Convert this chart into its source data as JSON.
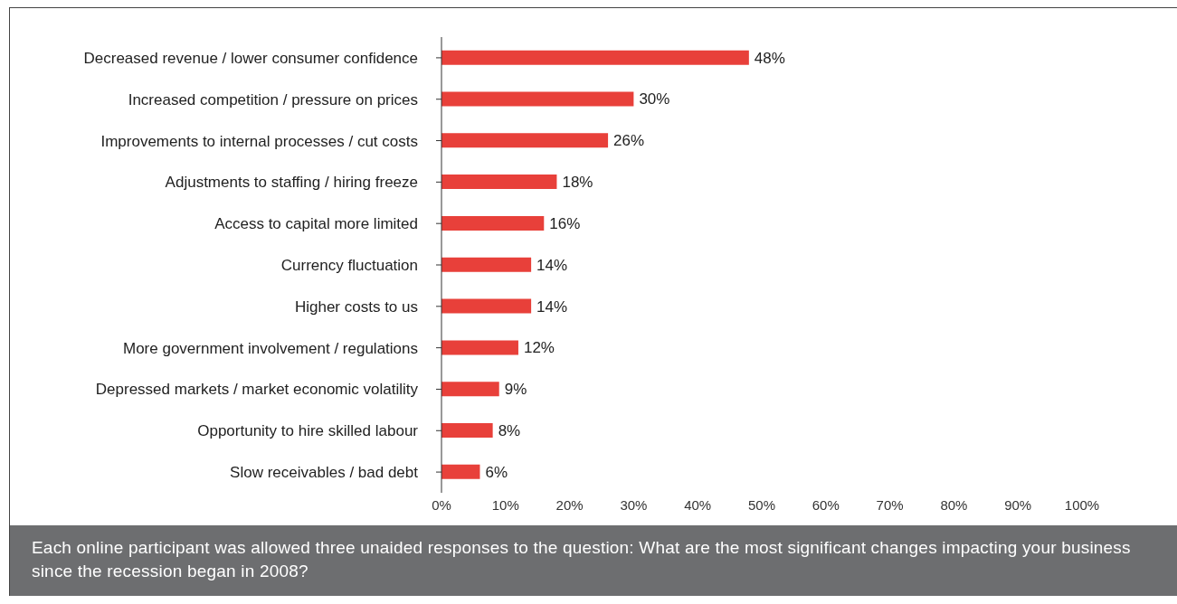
{
  "chart_data": {
    "type": "bar",
    "orientation": "horizontal",
    "categories": [
      "Decreased revenue / lower consumer confidence",
      "Increased competition / pressure on prices",
      "Improvements to internal processes / cut costs",
      "Adjustments to staffing / hiring freeze",
      "Access to capital more limited",
      "Currency fluctuation",
      "Higher costs to us",
      "More government involvement / regulations",
      "Depressed markets / market economic volatility",
      "Opportunity to hire skilled labour",
      "Slow receivables / bad debt"
    ],
    "values": [
      48,
      30,
      26,
      18,
      16,
      14,
      14,
      12,
      9,
      8,
      6
    ],
    "value_labels": [
      "48%",
      "30%",
      "26%",
      "18%",
      "16%",
      "14%",
      "14%",
      "12%",
      "9%",
      "8%",
      "6%"
    ],
    "color": "#e8403a",
    "xlim": [
      0,
      100
    ],
    "xticks": [
      {
        "value": 0,
        "label": "0%"
      },
      {
        "value": 10,
        "label": "10%"
      },
      {
        "value": 20,
        "label": "20%"
      },
      {
        "value": 30,
        "label": "30%"
      },
      {
        "value": 40,
        "label": "40%"
      },
      {
        "value": 50,
        "label": "50%"
      },
      {
        "value": 60,
        "label": "60%"
      },
      {
        "value": 70,
        "label": "70%"
      },
      {
        "value": 80,
        "label": "80%"
      },
      {
        "value": 90,
        "label": "90%"
      },
      {
        "value": 100,
        "label": "100%"
      }
    ],
    "annotations": [
      "Each online participant was allowed three unaided responses to the question: What are the most significant changes impacting your business since the recession began in 2008?"
    ]
  }
}
